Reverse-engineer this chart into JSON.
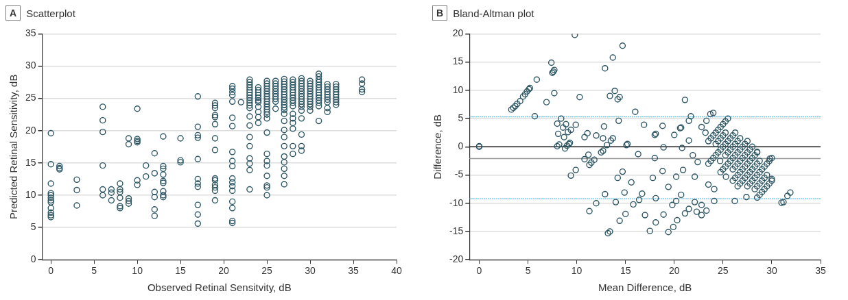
{
  "chart_data": [
    {
      "type": "scatter",
      "title": "Scatterplot",
      "annotations": [
        "A"
      ],
      "xlabel": "Observed Retinal Sensitvity, dB",
      "ylabel": "Predicted Retinal Sensitivity, dB",
      "xlim": [
        -1,
        40
      ],
      "xticks": [
        0,
        5,
        10,
        15,
        20,
        25,
        30,
        35,
        40
      ],
      "ylim": [
        0,
        35
      ],
      "yticks": [
        0,
        5,
        10,
        15,
        20,
        25,
        30,
        35
      ],
      "grid": "y",
      "marker": "circle",
      "series": [
        {
          "color": "#2d5664",
          "x": [
            0,
            0,
            0,
            0,
            0,
            0,
            0,
            0,
            0,
            0,
            0,
            0,
            1,
            1,
            1,
            3,
            3,
            3,
            6,
            6,
            6,
            6,
            6,
            6,
            7,
            7,
            7,
            8,
            8,
            8,
            8,
            8,
            8,
            9,
            9,
            9,
            9,
            9,
            10,
            10,
            10,
            10,
            10,
            10,
            11,
            11,
            12,
            12,
            12,
            12,
            12,
            12,
            13,
            13,
            13,
            13,
            13,
            13,
            13,
            13,
            13,
            15,
            15,
            15,
            17,
            17,
            17,
            17,
            17,
            17,
            17,
            17,
            17,
            17,
            17,
            19,
            19,
            19,
            19,
            19,
            19,
            19,
            19,
            19,
            19,
            19,
            19,
            19,
            19,
            21,
            21,
            21,
            21,
            21,
            21,
            21,
            21,
            21,
            21,
            21,
            21,
            21,
            21,
            21,
            21,
            21,
            21,
            22,
            23,
            23,
            23,
            23,
            23,
            23,
            23,
            23,
            23,
            23,
            23,
            23,
            23,
            23,
            23,
            23,
            23,
            23,
            23,
            23,
            24,
            24,
            24,
            24,
            24,
            24,
            24,
            24,
            24,
            24,
            24,
            25,
            25,
            25,
            25,
            25,
            25,
            25,
            25,
            25,
            25,
            25,
            25,
            25,
            25,
            25,
            25,
            25,
            25,
            25,
            25,
            25,
            25,
            25,
            26,
            26,
            26,
            26,
            26,
            26,
            26,
            26,
            26,
            26,
            27,
            27,
            27,
            27,
            27,
            27,
            27,
            27,
            27,
            27,
            27,
            27,
            27,
            27,
            27,
            27,
            27,
            27,
            27,
            27,
            27,
            27,
            27,
            28,
            28,
            28,
            28,
            28,
            28,
            28,
            28,
            28,
            28,
            28,
            28,
            28,
            28,
            28,
            28,
            28,
            29,
            29,
            29,
            29,
            29,
            29,
            29,
            29,
            29,
            29,
            29,
            29,
            29,
            29,
            29,
            29,
            29,
            30,
            30,
            30,
            30,
            30,
            30,
            30,
            30,
            30,
            30,
            30,
            30,
            31,
            31,
            31,
            31,
            31,
            31,
            31,
            31,
            31,
            31,
            31,
            31,
            31,
            31,
            32,
            32,
            32,
            32,
            32,
            32,
            32,
            32,
            32,
            32,
            33,
            33,
            33,
            33,
            33,
            33,
            33,
            33,
            33,
            36,
            36,
            36,
            36
          ],
          "values": [
            19.6,
            14.8,
            11.8,
            10.3,
            10.0,
            9.6,
            9.2,
            8.9,
            8.0,
            7.3,
            6.9,
            6.6,
            14.5,
            14.2,
            14.0,
            12.4,
            10.8,
            8.4,
            23.7,
            21.6,
            19.8,
            14.6,
            10.9,
            10.0,
            10.9,
            10.4,
            9.2,
            11.8,
            10.9,
            10.5,
            9.6,
            8.3,
            8.0,
            18.8,
            17.9,
            9.5,
            9.1,
            8.7,
            23.4,
            18.7,
            18.4,
            18.2,
            12.3,
            11.6,
            14.6,
            12.9,
            16.5,
            13.4,
            10.5,
            9.7,
            7.8,
            6.8,
            19.1,
            14.5,
            14.1,
            13.2,
            12.2,
            11.9,
            10.6,
            10.0,
            9.7,
            18.8,
            15.4,
            15.1,
            25.3,
            20.6,
            19.3,
            18.9,
            15.6,
            12.5,
            11.8,
            11.3,
            8.5,
            7.0,
            5.6,
            24.3,
            23.9,
            23.5,
            22.4,
            22.1,
            21.0,
            18.8,
            17.0,
            12.6,
            12.3,
            11.6,
            11.2,
            10.7,
            9.2,
            26.9,
            26.5,
            26.0,
            25.5,
            24.5,
            22.0,
            20.7,
            16.7,
            15.3,
            14.5,
            12.6,
            12.0,
            11.4,
            10.7,
            9.0,
            8.0,
            6.0,
            5.7,
            24.4,
            27.9,
            27.5,
            27.1,
            26.7,
            26.3,
            25.9,
            25.5,
            25.1,
            24.7,
            24.3,
            23.9,
            23.5,
            22.2,
            20.8,
            19.0,
            17.6,
            15.7,
            14.9,
            13.9,
            10.9,
            26.7,
            26.3,
            25.9,
            25.5,
            25.1,
            24.7,
            24.4,
            23.7,
            22.9,
            22.1,
            21.2,
            27.7,
            27.3,
            26.9,
            26.5,
            26.1,
            25.7,
            25.3,
            24.9,
            24.5,
            24.1,
            23.7,
            23.3,
            22.9,
            22.5,
            21.9,
            19.7,
            16.4,
            15.3,
            14.6,
            13.0,
            11.5,
            11.2,
            10.0,
            27.7,
            27.3,
            26.9,
            26.5,
            26.1,
            25.7,
            25.3,
            24.9,
            24.5,
            23.4,
            28.0,
            27.6,
            27.2,
            26.8,
            26.4,
            26.0,
            25.6,
            25.2,
            24.8,
            24.4,
            24.0,
            23.6,
            23.2,
            22.6,
            21.5,
            20.1,
            19.0,
            17.6,
            16.0,
            15.1,
            14.1,
            13.0,
            11.7,
            27.9,
            27.5,
            27.1,
            26.7,
            26.3,
            25.9,
            25.5,
            25.1,
            24.7,
            24.3,
            23.8,
            22.6,
            21.9,
            21.2,
            20.3,
            17.6,
            16.4,
            28.1,
            27.7,
            27.3,
            26.9,
            26.5,
            26.1,
            25.7,
            25.3,
            24.9,
            24.5,
            24.1,
            23.7,
            23.1,
            21.9,
            19.4,
            17.6,
            16.9,
            27.7,
            27.3,
            26.9,
            26.5,
            26.1,
            25.7,
            25.3,
            24.9,
            24.5,
            24.1,
            23.7,
            23.1,
            28.8,
            28.4,
            27.9,
            27.5,
            27.1,
            26.7,
            26.3,
            25.9,
            25.5,
            25.1,
            24.7,
            24.3,
            23.8,
            21.5,
            27.2,
            26.8,
            26.4,
            26.0,
            25.6,
            25.2,
            24.8,
            24.4,
            23.5,
            22.9,
            27.2,
            26.8,
            26.4,
            26.0,
            25.6,
            25.2,
            24.8,
            24.4,
            24.0,
            27.9,
            27.3,
            26.4,
            26.0
          ]
        }
      ]
    },
    {
      "type": "scatter",
      "title": "Bland-Altman plot",
      "annotations": [
        "B"
      ],
      "xlabel": "Mean Difference, dB",
      "ylabel": "Difference, dB",
      "xlim": [
        -1,
        35
      ],
      "xticks": [
        0,
        5,
        10,
        15,
        20,
        25,
        30,
        35
      ],
      "ylim": [
        -20,
        20
      ],
      "yticks": [
        -20,
        -15,
        -10,
        -5,
        0,
        5,
        10,
        15,
        20
      ],
      "grid": "y",
      "marker": "circle",
      "ref_lines": [
        {
          "axis": "y",
          "value": 5.3,
          "color": "#29abe2",
          "line_style": "dotted"
        },
        {
          "axis": "y",
          "value": -9.2,
          "color": "#29abe2",
          "line_style": "dotted"
        },
        {
          "axis": "y",
          "value": 0,
          "color": "#222222",
          "line_style": "solid"
        },
        {
          "axis": "y",
          "value": -2.1,
          "color": "#999999",
          "line_style": "solid"
        }
      ],
      "series": [
        {
          "color": "#2d5664",
          "x": [
            0,
            0,
            3.3,
            3.5,
            3.7,
            3.9,
            4.2,
            4.5,
            4.7,
            4.9,
            5.1,
            5.2,
            5.7,
            5.9,
            6.9,
            7.4,
            7.5,
            7.6,
            7.7,
            7.7,
            8.0,
            8.1,
            8.0,
            8.2,
            8.4,
            8.6,
            8.7,
            8.8,
            8.9,
            9.0,
            9.1,
            9.2,
            9.3,
            9.4,
            9.4,
            9.8,
            9.9,
            9.9,
            10.3,
            10.8,
            10.8,
            11.1,
            11.2,
            11.3,
            11.3,
            11.5,
            11.8,
            12.0,
            12.0,
            12.5,
            12.7,
            12.7,
            12.8,
            12.9,
            12.9,
            13.1,
            13.5,
            13.2,
            13.4,
            13.9,
            13.4,
            14.2,
            14.4,
            13.7,
            14.7,
            21.1,
            16.0,
            14.3,
            16.9,
            18.8,
            18.1,
            18.0,
            20.0,
            20.6,
            20.7,
            21.5,
            21.7,
            21.5,
            13.7,
            15.1,
            15.2,
            18.9,
            20.8,
            16.3,
            18.0,
            14.7,
            14.2,
            14.0,
            14.9,
            15.6,
            15.8,
            16.4,
            16.7,
            18.1,
            17.8,
            18.8,
            19.4,
            18.9,
            17.0,
            15.0,
            14.4,
            17.5,
            18.1,
            19.4,
            19.9,
            20.3,
            21.1,
            21.5,
            19.8,
            20.2,
            20.7,
            22.1,
            22.3,
            22.8,
            23.3,
            22.8,
            22.1,
            20.2,
            20.9,
            22.4,
            21.9,
            22.8,
            23.2,
            23.3,
            23.7,
            24.0,
            24.1,
            24.1,
            26.2,
            25.3,
            24.7,
            23.5,
            27.4,
            31.0,
            31.2,
            31.6,
            31.9,
            29.8,
            30.0,
            28.5,
            23.5,
            23.75,
            24,
            24.25,
            24.5,
            24.75,
            25,
            25.25,
            25.5,
            24.25,
            24.5,
            24.75,
            25,
            25.25,
            23.5,
            23.75,
            24,
            24.25,
            24.5,
            24.75,
            25,
            25.25,
            25.5,
            25.75,
            26,
            26.25,
            25.25,
            25.5,
            25.75,
            26,
            26.25,
            26.5,
            26.75,
            24.75,
            25,
            25.25,
            25.5,
            25.75,
            26,
            26.25,
            26.5,
            26.75,
            27,
            27.25,
            27.5,
            26,
            26.25,
            26.5,
            26.75,
            27,
            27.25,
            27.5,
            27.75,
            28,
            26,
            26.25,
            26.5,
            26.75,
            27,
            27.25,
            27.5,
            27.75,
            28,
            28.25,
            28.5,
            26.5,
            26.75,
            27,
            27.25,
            27.5,
            27.75,
            28,
            28.25,
            28.5,
            28.75,
            27.5,
            27.75,
            28,
            28.25,
            28.5,
            28.75,
            29,
            29.25,
            29.5,
            29.75,
            30,
            28.25,
            28.5,
            28.75,
            29,
            29.25,
            29.5,
            28.5,
            28.75,
            29,
            29.25,
            29.5,
            29.75,
            30
          ],
          "values": [
            0,
            0.1,
            6.6,
            6.9,
            7.2,
            7.6,
            8.1,
            8.9,
            9.3,
            9.8,
            10.2,
            10.4,
            5.4,
            11.9,
            7.9,
            14.9,
            13.1,
            13.3,
            13.6,
            9.5,
            4.1,
            2.3,
            0.1,
            0.4,
            5.0,
            3.4,
            1.7,
            -0.3,
            4.0,
            0.2,
            2.6,
            0.5,
            0.7,
            3.0,
            -5.1,
            19.8,
            3.9,
            -4.1,
            8.8,
            1.7,
            -2.2,
            2.4,
            -1.4,
            -3.2,
            -11.4,
            -2.8,
            -2.3,
            2.0,
            -10.0,
            -1.0,
            -0.7,
            1.5,
            3.6,
            -8.4,
            13.9,
            0.3,
            1.1,
            -15.3,
            -15.0,
            9.9,
            9.0,
            8.4,
            8.8,
            15.8,
            17.9,
            8.3,
            6.2,
            4.6,
            3.9,
            3.7,
            2.3,
            2.1,
            2.1,
            3.3,
            3.4,
            4.6,
            5.4,
            1.1,
            1.5,
            0.3,
            0.5,
            -0.1,
            -0.2,
            -1.3,
            -2.0,
            -4.4,
            -5.5,
            -9.8,
            -8.1,
            -6.3,
            -10.2,
            -9.4,
            -8.3,
            -9.1,
            -5.5,
            -4.3,
            -7.1,
            -12.0,
            -12.1,
            -11.9,
            -13.1,
            -14.9,
            -13.4,
            -15.1,
            -14.2,
            -13.0,
            -11.8,
            -11.0,
            -10.3,
            -9.6,
            -8.5,
            -9.8,
            -11.5,
            -12.1,
            -11.3,
            -10.3,
            -5.3,
            -5.3,
            -4.1,
            -2.7,
            -1.5,
            3.5,
            2.5,
            4.6,
            5.8,
            6.0,
            -7.5,
            -9.6,
            -9.6,
            -5.3,
            -2.5,
            -6.7,
            -8.9,
            -9.9,
            -9.8,
            -8.7,
            -8.1,
            -2.1,
            -5.7,
            -0.9,
            1,
            1.5,
            2,
            2.5,
            3,
            3.5,
            4,
            4.5,
            5,
            0.5,
            1,
            1.5,
            2,
            2.5,
            -3,
            -2.5,
            -2,
            -1.5,
            -1,
            -0.5,
            0,
            0.5,
            1,
            1.5,
            2,
            2.5,
            -1.5,
            -1,
            -0.5,
            0,
            0.5,
            1,
            1.5,
            -4.5,
            -4,
            -3.5,
            -3,
            -2.5,
            -2,
            -1.5,
            -1,
            -0.5,
            0,
            0.5,
            1,
            -4,
            -3.5,
            -3,
            -2.5,
            -2,
            -1.5,
            -1,
            -0.5,
            0,
            -6,
            -5.5,
            -5,
            -4.5,
            -4,
            -3.5,
            -3,
            -2.5,
            -2,
            -1.5,
            -1,
            -7,
            -6.5,
            -6,
            -5.5,
            -5,
            -4.5,
            -4,
            -3.5,
            -3,
            -2.5,
            -7,
            -6.5,
            -6,
            -5.5,
            -5,
            -4.5,
            -4,
            -3.5,
            -3,
            -2.5,
            -2,
            -7.5,
            -7,
            -6.5,
            -6,
            -5.5,
            -5,
            -9,
            -8.5,
            -8,
            -7.5,
            -7,
            -6.5,
            -6
          ]
        }
      ]
    }
  ]
}
